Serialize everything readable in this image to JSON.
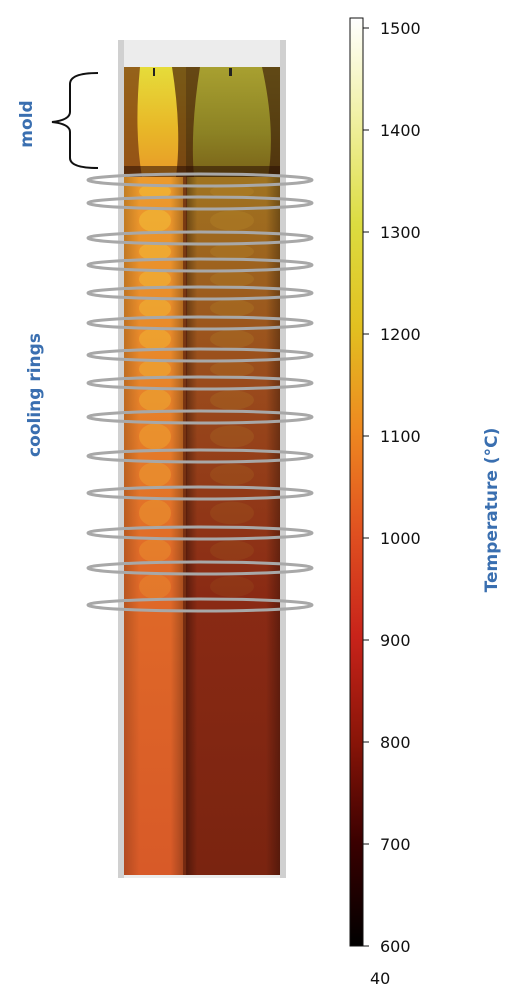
{
  "labels": {
    "mold": "mold",
    "cooling_rings": "cooling rings",
    "colorbar_title": "Temperature (°C)",
    "bottom_cut": "40"
  },
  "colorbar": {
    "min": 600,
    "max": 1500,
    "ticks": [
      "1500",
      "1400",
      "1300",
      "1200",
      "1100",
      "1000",
      "900",
      "800",
      "700",
      "600"
    ],
    "stops": [
      {
        "value": 600,
        "color": "#000000"
      },
      {
        "value": 700,
        "color": "#3a0000"
      },
      {
        "value": 800,
        "color": "#8a1508"
      },
      {
        "value": 900,
        "color": "#c8231a"
      },
      {
        "value": 1000,
        "color": "#e05020"
      },
      {
        "value": 1100,
        "color": "#ee8820"
      },
      {
        "value": 1200,
        "color": "#e2c020"
      },
      {
        "value": 1300,
        "color": "#dcdc40"
      },
      {
        "value": 1400,
        "color": "#f0f0a0"
      },
      {
        "value": 1500,
        "color": "#ffffff"
      }
    ]
  },
  "cooling_ring_count": 14,
  "colors": {
    "label_blue": "#3a6fb0",
    "ring_gray": "#a8a8a8"
  }
}
